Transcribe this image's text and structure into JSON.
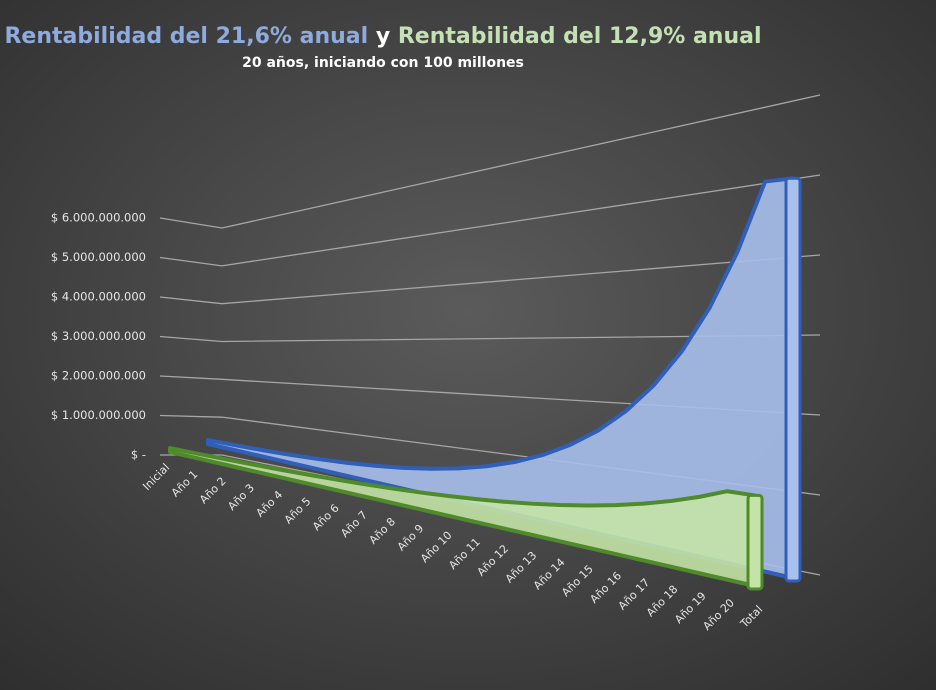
{
  "chart_data": {
    "type": "area3d",
    "title_joiner": "y",
    "subtitle": "20 años, iniciando con 100 millones",
    "categories": [
      "Inicial",
      "Año 1",
      "Año 2",
      "Año 3",
      "Año 4",
      "Año 5",
      "Año 6",
      "Año 7",
      "Año 8",
      "Año 9",
      "Año 10",
      "Año 11",
      "Año 12",
      "Año 13",
      "Año 14",
      "Año 15",
      "Año 16",
      "Año 17",
      "Año 18",
      "Año 19",
      "Año 20",
      "Total"
    ],
    "series": [
      {
        "name": "Rentabilidad del 21,6% anual",
        "color": "#8faadc",
        "fill": "#a9c0ec",
        "stroke": "#2f5fb8",
        "values": [
          100000000,
          121600000,
          147900000,
          179800000,
          218600000,
          265800000,
          323300000,
          393100000,
          478000000,
          581200000,
          706800000,
          859500000,
          1045100000,
          1270900000,
          1545400000,
          1879200000,
          2285100000,
          2778700000,
          3378900000,
          4108700000,
          4996200000,
          4996200000
        ]
      },
      {
        "name": "Rentabilidad del 12,9% anual",
        "color": "#c5e0b4",
        "fill": "#c4e3a6",
        "stroke": "#4f8a2b",
        "values": [
          100000000,
          112900000,
          127500000,
          143900000,
          162500000,
          183400000,
          207100000,
          233800000,
          264000000,
          298000000,
          336500000,
          379900000,
          428900000,
          484200000,
          546700000,
          617200000,
          696800000,
          786700000,
          888200000,
          1002800000,
          1132200000,
          1132200000
        ]
      }
    ],
    "ylim": [
      0,
      6000000000
    ],
    "yticks": [
      {
        "value": 0,
        "label": "$ -"
      },
      {
        "value": 1000000000,
        "label": "$ 1.000.000.000"
      },
      {
        "value": 2000000000,
        "label": "$ 2.000.000.000"
      },
      {
        "value": 3000000000,
        "label": "$ 3.000.000.000"
      },
      {
        "value": 4000000000,
        "label": "$ 4.000.000.000"
      },
      {
        "value": 5000000000,
        "label": "$ 5.000.000.000"
      },
      {
        "value": 6000000000,
        "label": "$ 6.000.000.000"
      }
    ],
    "grid": true
  }
}
